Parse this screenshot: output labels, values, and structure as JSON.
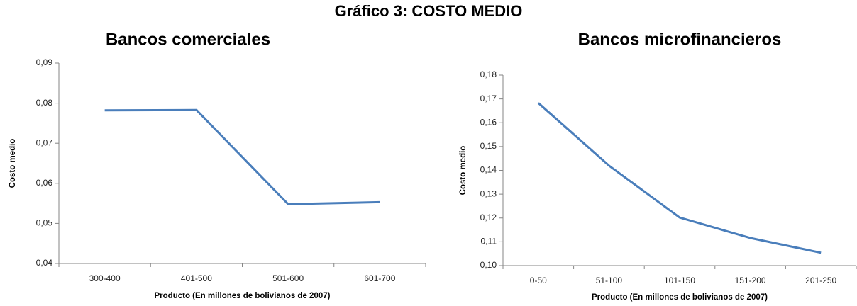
{
  "title": "Gráfico 3: COSTO MEDIO",
  "chart_data": [
    {
      "type": "line",
      "title": "Bancos comerciales",
      "x_label": "Producto (En millones de bolivianos de 2007)",
      "y_label": "Costo medio",
      "categories": [
        "300-400",
        "401-500",
        "501-600",
        "601-700"
      ],
      "values": [
        0.0782,
        0.0783,
        0.0548,
        0.0553
      ],
      "color": "#4a7ebb",
      "ylim": [
        0.04,
        0.09
      ],
      "yticks": [
        {
          "value": 0.04,
          "label": "0,04"
        },
        {
          "value": 0.05,
          "label": "0,05"
        },
        {
          "value": 0.06,
          "label": "0,06"
        },
        {
          "value": 0.07,
          "label": "0,07"
        },
        {
          "value": 0.08,
          "label": "0,08"
        },
        {
          "value": 0.09,
          "label": "0,09"
        }
      ],
      "grid": false
    },
    {
      "type": "line",
      "title": "Bancos microfinancieros",
      "x_label": "Producto (En millones de bolivianos de 2007)",
      "y_label": "Costo medio",
      "categories": [
        "0-50",
        "51-100",
        "101-150",
        "151-200",
        "201-250"
      ],
      "values": [
        0.1683,
        0.142,
        0.1202,
        0.1116,
        0.1054
      ],
      "color": "#4a7ebb",
      "ylim": [
        0.1,
        0.18
      ],
      "yticks": [
        {
          "value": 0.1,
          "label": "0,10"
        },
        {
          "value": 0.11,
          "label": "0,11"
        },
        {
          "value": 0.12,
          "label": "0,12"
        },
        {
          "value": 0.13,
          "label": "0,13"
        },
        {
          "value": 0.14,
          "label": "0,14"
        },
        {
          "value": 0.15,
          "label": "0,15"
        },
        {
          "value": 0.16,
          "label": "0,16"
        },
        {
          "value": 0.17,
          "label": "0,17"
        },
        {
          "value": 0.18,
          "label": "0,18"
        }
      ],
      "grid": false
    }
  ]
}
